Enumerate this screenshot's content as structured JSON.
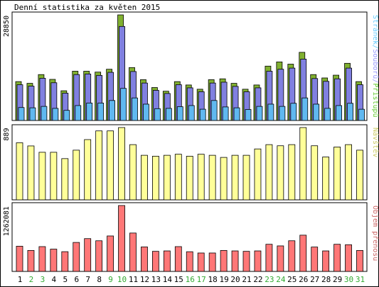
{
  "chart_data": [
    {
      "type": "bar",
      "title": "Denní statistika za květen 2015",
      "ymax_label": "28850",
      "legend_label_prefix": "",
      "legend_parts": [
        {
          "text": "Stránek",
          "color": "#66ccff"
        },
        {
          "text": "/",
          "color": "#66ccff"
        },
        {
          "text": "Souborů",
          "color": "#9999ff"
        },
        {
          "text": "/",
          "color": "#9999ff"
        },
        {
          "text": "Přístupů",
          "color": "#66cc33"
        }
      ],
      "categories": [
        "1",
        "2",
        "3",
        "4",
        "5",
        "6",
        "7",
        "8",
        "9",
        "10",
        "11",
        "12",
        "13",
        "14",
        "15",
        "16",
        "17",
        "18",
        "19",
        "20",
        "21",
        "22",
        "23",
        "24",
        "25",
        "26",
        "27",
        "28",
        "29",
        "30",
        "31"
      ],
      "ylim": [
        0,
        28850
      ],
      "series": [
        {
          "name": "Přístupů",
          "color": "#80b030",
          "values": [
            10620,
            10150,
            12540,
            11230,
            8120,
            13460,
            13460,
            13220,
            14000,
            28850,
            14460,
            11150,
            9000,
            8000,
            10620,
            9700,
            8540,
            11150,
            11380,
            10150,
            8540,
            9700,
            14850,
            16000,
            15390,
            18620,
            12540,
            11620,
            12380,
            15620,
            10620
          ]
        },
        {
          "name": "Souborů",
          "color": "#8080e0",
          "values": [
            9770,
            9380,
            11540,
            10310,
            7460,
            12540,
            12700,
            12310,
            13150,
            25690,
            13380,
            10230,
            8230,
            7380,
            9770,
            8920,
            7850,
            10230,
            10460,
            9310,
            7850,
            8920,
            13460,
            14000,
            14310,
            16770,
            11460,
            10690,
            11380,
            14310,
            9770
          ]
        },
        {
          "name": "Stránek",
          "color": "#60b8f0",
          "values": [
            3540,
            3460,
            3850,
            3310,
            2770,
            4080,
            4770,
            4770,
            5460,
            8770,
            6160,
            4460,
            3230,
            3310,
            3770,
            4080,
            3080,
            5460,
            3700,
            3460,
            3000,
            3850,
            4460,
            3850,
            4690,
            6160,
            4460,
            3310,
            4080,
            4690,
            3070
          ]
        }
      ]
    },
    {
      "type": "bar",
      "ymax_label": "889",
      "ylim": [
        0,
        889
      ],
      "legend_parts": [
        {
          "text": "Návštěv",
          "color": "#cccc66"
        }
      ],
      "categories": [
        "1",
        "2",
        "3",
        "4",
        "5",
        "6",
        "7",
        "8",
        "9",
        "10",
        "11",
        "12",
        "13",
        "14",
        "15",
        "16",
        "17",
        "18",
        "19",
        "20",
        "21",
        "22",
        "23",
        "24",
        "25",
        "26",
        "27",
        "28",
        "29",
        "30",
        "31"
      ],
      "series": [
        {
          "name": "Návštěv",
          "color": "#ffff99",
          "values": [
            702,
            663,
            585,
            585,
            507,
            611,
            741,
            848,
            848,
            889,
            679,
            548,
            537,
            548,
            561,
            537,
            561,
            548,
            522,
            548,
            548,
            626,
            679,
            665,
            679,
            889,
            665,
            527,
            650,
            679,
            611
          ]
        }
      ]
    },
    {
      "type": "bar",
      "ymax_label": "1262081",
      "ylim": [
        0,
        1262081
      ],
      "legend_parts": [
        {
          "text": "Objem přenosu",
          "color": "#cc6666"
        }
      ],
      "categories": [
        "1",
        "2",
        "3",
        "4",
        "5",
        "6",
        "7",
        "8",
        "9",
        "10",
        "11",
        "12",
        "13",
        "14",
        "15",
        "16",
        "17",
        "18",
        "19",
        "20",
        "21",
        "22",
        "23",
        "24",
        "25",
        "26",
        "27",
        "28",
        "29",
        "30",
        "31"
      ],
      "series": [
        {
          "name": "Objem přenosu",
          "color": "#ff7777",
          "values": [
            483000,
            402000,
            475000,
            427000,
            378000,
            555000,
            628000,
            587000,
            679000,
            1262081,
            735000,
            469000,
            385000,
            393000,
            475000,
            377000,
            353000,
            353000,
            402000,
            393000,
            385000,
            393000,
            520000,
            489000,
            587000,
            694000,
            467000,
            393000,
            520000,
            511000,
            402000
          ]
        }
      ]
    }
  ],
  "day_labels": [
    {
      "text": "1",
      "color": "#000000"
    },
    {
      "text": "2",
      "color": "#33aa33"
    },
    {
      "text": "3",
      "color": "#33aa33"
    },
    {
      "text": "4",
      "color": "#000000"
    },
    {
      "text": "5",
      "color": "#000000"
    },
    {
      "text": "6",
      "color": "#000000"
    },
    {
      "text": "7",
      "color": "#000000"
    },
    {
      "text": "8",
      "color": "#000000"
    },
    {
      "text": "9",
      "color": "#33aa33"
    },
    {
      "text": "10",
      "color": "#33aa33"
    },
    {
      "text": "11",
      "color": "#000000"
    },
    {
      "text": "12",
      "color": "#000000"
    },
    {
      "text": "13",
      "color": "#000000"
    },
    {
      "text": "14",
      "color": "#000000"
    },
    {
      "text": "15",
      "color": "#000000"
    },
    {
      "text": "16",
      "color": "#33aa33"
    },
    {
      "text": "17",
      "color": "#33aa33"
    },
    {
      "text": "18",
      "color": "#000000"
    },
    {
      "text": "19",
      "color": "#000000"
    },
    {
      "text": "20",
      "color": "#000000"
    },
    {
      "text": "21",
      "color": "#000000"
    },
    {
      "text": "22",
      "color": "#000000"
    },
    {
      "text": "23",
      "color": "#33aa33"
    },
    {
      "text": "24",
      "color": "#33aa33"
    },
    {
      "text": "25",
      "color": "#000000"
    },
    {
      "text": "26",
      "color": "#000000"
    },
    {
      "text": "27",
      "color": "#000000"
    },
    {
      "text": "28",
      "color": "#000000"
    },
    {
      "text": "29",
      "color": "#000000"
    },
    {
      "text": "30",
      "color": "#33aa33"
    },
    {
      "text": "31",
      "color": "#33aa33"
    }
  ]
}
